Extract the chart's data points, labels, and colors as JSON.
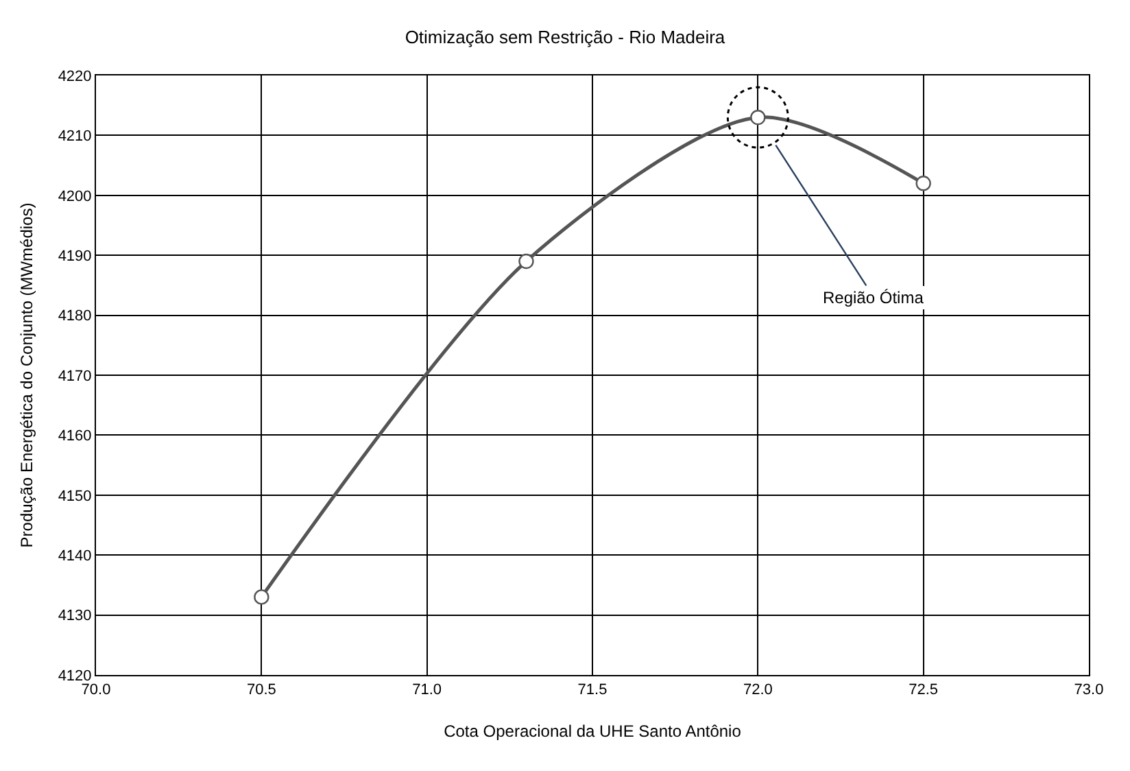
{
  "chart_data": {
    "type": "line",
    "title": "Otimização sem Restrição - Rio Madeira",
    "xlabel": "Cota Operacional da UHE Santo Antônio",
    "ylabel": "Produção Energética do Conjunto (MWmédios)",
    "x": [
      70.5,
      71.3,
      72.0,
      72.5
    ],
    "series": [
      {
        "color": "#555555",
        "values": [
          4133,
          4189,
          4213,
          4202
        ]
      }
    ],
    "xlim": [
      70.0,
      73.0
    ],
    "xticks": [
      {
        "value": 70.0,
        "label": "70.0"
      },
      {
        "value": 70.5,
        "label": "70.5"
      },
      {
        "value": 71.0,
        "label": "71.0"
      },
      {
        "value": 71.5,
        "label": "71.5"
      },
      {
        "value": 72.0,
        "label": "72.0"
      },
      {
        "value": 72.5,
        "label": "72.5"
      },
      {
        "value": 73.0,
        "label": "73.0"
      }
    ],
    "ylim": [
      4120,
      4220
    ],
    "yticks": [
      4120,
      4130,
      4140,
      4150,
      4160,
      4170,
      4180,
      4190,
      4200,
      4210,
      4220
    ],
    "annotations": [
      {
        "text": "Região Ótima",
        "x": 72.0,
        "y": 4213
      }
    ],
    "grid": true,
    "marker": "circle",
    "line_style": "solid"
  }
}
